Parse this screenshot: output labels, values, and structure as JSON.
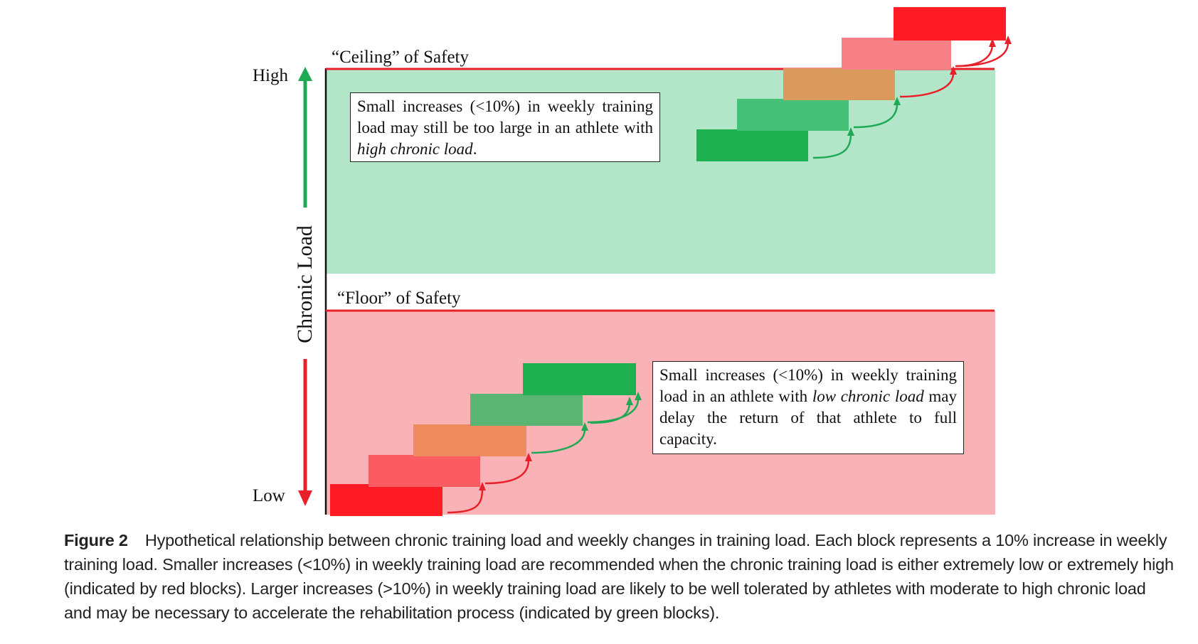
{
  "ceiling_label": "“Ceiling” of Safety",
  "floor_label": "“Floor” of Safety",
  "axis": {
    "high": "High",
    "low": "Low",
    "title": "Chronic Load"
  },
  "callout_top": {
    "before": "Small increases (<10%) in weekly training load may still be too large in an athlete with ",
    "italic": "high chronic load",
    "after": "."
  },
  "callout_bottom": {
    "before": "Small increases (<10%) in weekly training load in an athlete with ",
    "italic": "low chronic load",
    "after": " may delay the return of that athlete to full capacity."
  },
  "caption": {
    "label": "Figure 2",
    "text": "Hypothetical relationship between chronic training load and weekly changes in training load. Each block represents a 10% increase in weekly training load. Smaller increases (<10%) in weekly training load are recommended when the chronic training load is either extremely low or extremely high (indicated by red blocks). Larger increases (>10%) in weekly training load are likely to be well tolerated by athletes with moderate to high chronic load and may be necessary to accelerate the rehabilitation process (indicated by green blocks)."
  },
  "colors": {
    "safe_zone": "#b3e6c8",
    "danger_zone": "#f9b2b6",
    "red_line": "#e8202a",
    "green_arrow": "#20a955",
    "red_arrow": "#e8202a",
    "dark_green": "#1fb052",
    "mid_green": "#45c076",
    "muted_green": "#5bb572",
    "orange_safe": "#d99a5c",
    "orange_danger": "#ee8c5f",
    "salmon": "#f77f86",
    "salmon_danger": "#fb5b62",
    "red_block": "#ff1c24",
    "red_top": "#ff1c24"
  },
  "staircases": {
    "upper": [
      "dark_green",
      "mid_green",
      "orange_safe",
      "salmon",
      "red_top"
    ],
    "lower": [
      "red_block",
      "salmon_danger",
      "orange_danger",
      "muted_green",
      "dark_green"
    ]
  }
}
